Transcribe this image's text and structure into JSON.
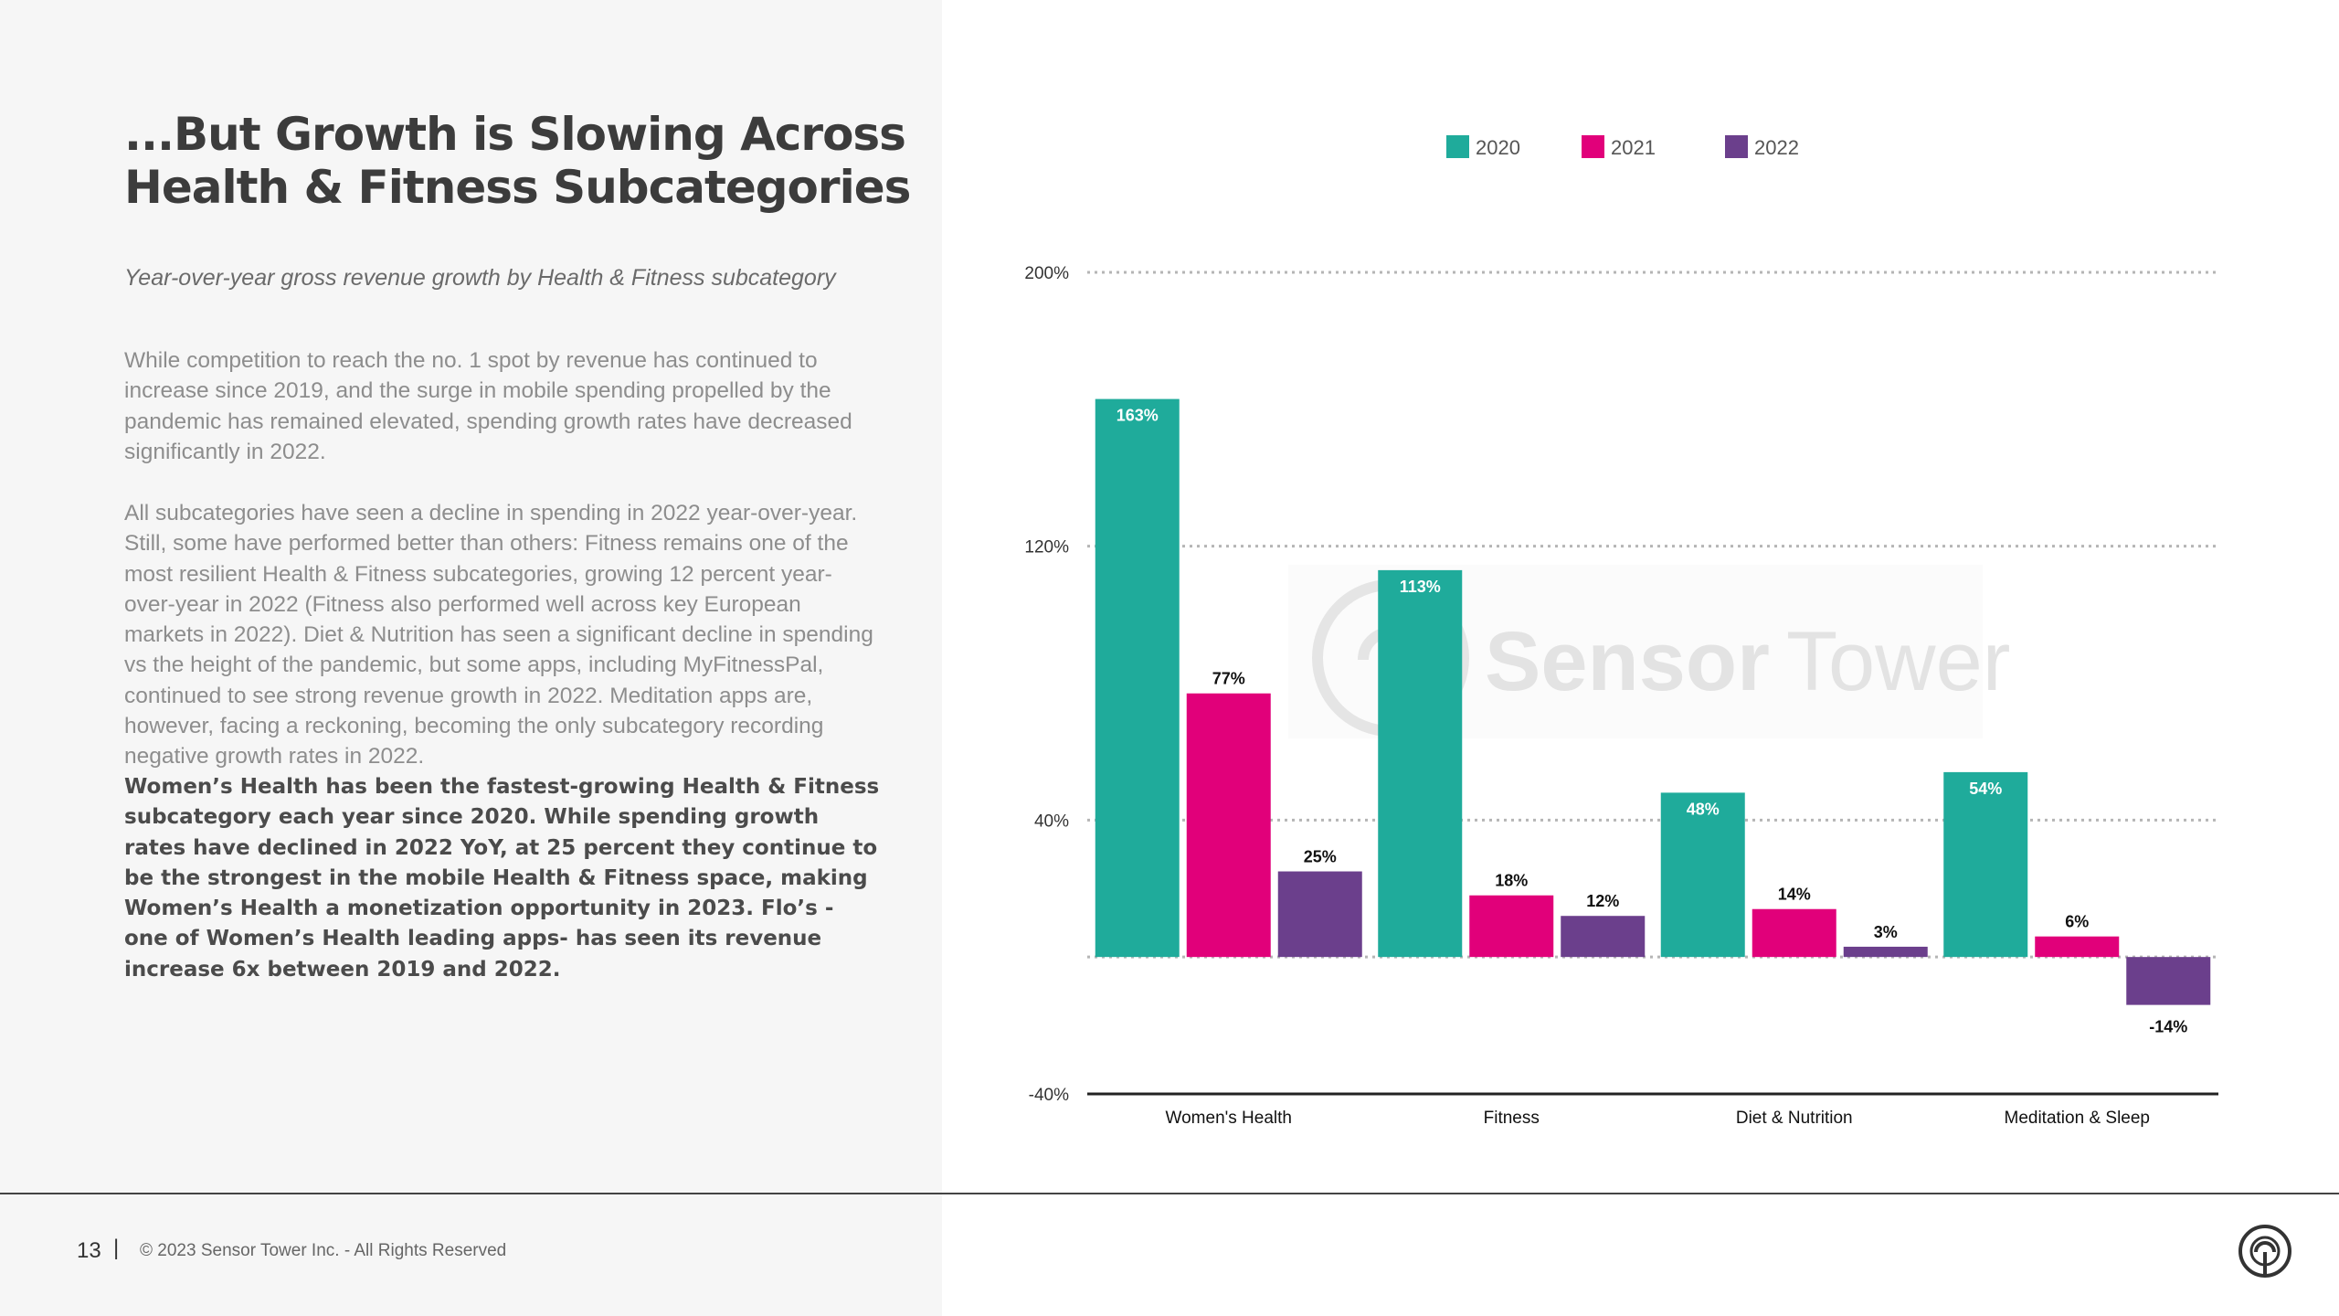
{
  "slide": {
    "title": "...But Growth is Slowing Across Health & Fitness Subcategories",
    "subtitle": "Year-over-year gross revenue growth by Health & Fitness subcategory",
    "paragraph1": "While competition to reach the no. 1 spot by revenue has continued to increase since 2019, and the surge in mobile spending propelled by the pandemic has remained elevated, spending growth rates have decreased significantly in 2022.",
    "paragraph2": "All subcategories have seen a decline in spending in 2022 year-over-year. Still, some have performed better than others: Fitness remains one of the most resilient Health & Fitness subcategories, growing 12 percent year-over-year in 2022 (Fitness also performed well across key European markets in 2022). Diet & Nutrition has seen a significant decline in spending vs the height of the pandemic, but some apps, including MyFitnessPal, continued to see strong revenue growth in 2022. Meditation apps are, however, facing a reckoning, becoming the only subcategory recording negative growth rates in 2022.",
    "paragraph3": "Women’s Health has been the fastest-growing Health & Fitness subcategory each year since 2020. While spending growth rates have declined in 2022 YoY, at 25 percent they continue to be the strongest in the mobile Health & Fitness space, making Women’s Health a monetization opportunity in 2023. Flo’s - one of Women’s Health leading apps- has seen its revenue increase 6x between 2019 and 2022."
  },
  "footer": {
    "page_number": "13",
    "separator": "|",
    "copyright": "© 2023 Sensor Tower Inc. - All Rights Reserved"
  },
  "watermark": {
    "text_bold": "Sensor",
    "text_light": "Tower"
  },
  "colors": {
    "2020": "#1fab9b",
    "2021": "#e1007a",
    "2022": "#6b3f8c"
  },
  "chart_data": {
    "type": "bar",
    "title": "",
    "categories": [
      "Women's Health",
      "Fitness",
      "Diet & Nutrition",
      "Meditation & Sleep"
    ],
    "series": [
      {
        "name": "2020",
        "values": [
          163,
          113,
          48,
          54
        ],
        "labels": [
          "163%",
          "113%",
          "48%",
          "54%"
        ]
      },
      {
        "name": "2021",
        "values": [
          77,
          18,
          14,
          6
        ],
        "labels": [
          "77%",
          "18%",
          "14%",
          "6%"
        ]
      },
      {
        "name": "2022",
        "values": [
          25,
          12,
          3,
          -14
        ],
        "labels": [
          "25%",
          "12%",
          "3%",
          "-14%"
        ]
      }
    ],
    "yticks": [
      200,
      120,
      40,
      -40
    ],
    "ytick_labels": [
      "200%",
      "120%",
      "40%",
      "-40%"
    ],
    "ylim": [
      -40,
      200
    ],
    "xlabel": "",
    "ylabel": "",
    "grid": true,
    "legend": "top"
  }
}
